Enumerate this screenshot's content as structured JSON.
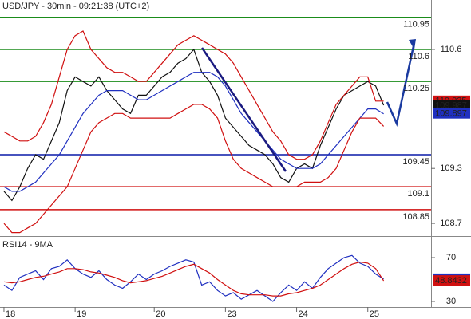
{
  "chart_data": [
    {
      "type": "line",
      "title": "USD/JPY - 30min - 09:21:38 (UTC+2)",
      "ylim": [
        108.57,
        111.14
      ],
      "yticks": [
        108.7,
        109.3,
        110.6
      ],
      "xlim": [
        -0.5,
        54
      ],
      "xticks": [
        {
          "value": 0,
          "label": "18"
        },
        {
          "value": 9,
          "label": "19"
        },
        {
          "value": 19,
          "label": "20"
        },
        {
          "value": 28,
          "label": "23"
        },
        {
          "value": 37,
          "label": "24"
        },
        {
          "value": 46,
          "label": "25"
        }
      ],
      "levels": [
        {
          "value": 110.95,
          "color": "#1a8c1a"
        },
        {
          "value": 110.6,
          "color": "#1a8c1a"
        },
        {
          "value": 110.25,
          "color": "#1a8c1a"
        },
        {
          "value": 109.45,
          "color": "#0a1aa8"
        },
        {
          "value": 109.1,
          "color": "#d01010"
        },
        {
          "value": 108.85,
          "color": "#d01010"
        }
      ],
      "series": [
        {
          "color": "#111111",
          "values": [
            109.05,
            108.95,
            109.1,
            109.3,
            109.45,
            109.4,
            109.6,
            109.8,
            110.15,
            110.3,
            110.25,
            110.2,
            110.3,
            110.15,
            110.05,
            109.95,
            109.9,
            110.1,
            110.1,
            110.2,
            110.3,
            110.35,
            110.45,
            110.5,
            110.6,
            110.35,
            110.25,
            110.1,
            109.85,
            109.75,
            109.65,
            109.55,
            109.5,
            109.45,
            109.35,
            109.2,
            109.15,
            109.3,
            109.35,
            109.3,
            109.55,
            109.75,
            109.95,
            110.1,
            110.15,
            110.2,
            110.25,
            110.2,
            109.99
          ]
        },
        {
          "color": "#2030c0",
          "values": [
            109.1,
            109.05,
            109.05,
            109.1,
            109.15,
            109.25,
            109.35,
            109.45,
            109.6,
            109.75,
            109.9,
            110.0,
            110.1,
            110.15,
            110.15,
            110.15,
            110.1,
            110.05,
            110.05,
            110.1,
            110.15,
            110.2,
            110.25,
            110.3,
            110.35,
            110.35,
            110.35,
            110.3,
            110.2,
            110.05,
            109.9,
            109.8,
            109.7,
            109.6,
            109.5,
            109.4,
            109.35,
            109.3,
            109.3,
            109.3,
            109.35,
            109.45,
            109.55,
            109.65,
            109.75,
            109.85,
            109.95,
            109.95,
            109.897
          ]
        },
        {
          "color": "#d01010",
          "values": [
            109.7,
            109.65,
            109.6,
            109.6,
            109.65,
            109.8,
            110.0,
            110.3,
            110.6,
            110.75,
            110.8,
            110.6,
            110.5,
            110.4,
            110.35,
            110.35,
            110.3,
            110.25,
            110.25,
            110.35,
            110.45,
            110.55,
            110.65,
            110.7,
            110.75,
            110.7,
            110.65,
            110.6,
            110.55,
            110.45,
            110.3,
            110.15,
            110.0,
            109.85,
            109.7,
            109.6,
            109.45,
            109.4,
            109.4,
            109.45,
            109.6,
            109.8,
            110.0,
            110.1,
            110.2,
            110.3,
            110.3,
            110.035,
            110.035
          ]
        },
        {
          "color": "#d01010",
          "values": [
            108.7,
            108.6,
            108.6,
            108.65,
            108.7,
            108.8,
            108.9,
            109.0,
            109.1,
            109.3,
            109.5,
            109.7,
            109.8,
            109.85,
            109.9,
            109.9,
            109.85,
            109.85,
            109.85,
            109.85,
            109.85,
            109.85,
            109.9,
            109.95,
            110.0,
            110.0,
            109.95,
            109.85,
            109.6,
            109.4,
            109.3,
            109.25,
            109.2,
            109.15,
            109.1,
            109.1,
            109.1,
            109.1,
            109.15,
            109.15,
            109.15,
            109.2,
            109.3,
            109.5,
            109.7,
            109.85,
            109.85,
            109.85,
            109.76
          ]
        }
      ],
      "tags": [
        {
          "value": 110.035,
          "color": "#d01010",
          "text_color": "#ffffff"
        },
        {
          "value": 109.987,
          "color": "#111111",
          "text_color": "#ffffff"
        },
        {
          "value": 109.897,
          "color": "#2030c0",
          "text_color": "#ffffff"
        }
      ]
    },
    {
      "type": "line",
      "title": "RSI14 - 9MA",
      "ylim": [
        24.9,
        88.2
      ],
      "yticks": [
        30,
        70
      ],
      "xlim": [
        -0.5,
        54
      ],
      "series": [
        {
          "color": "#2030c0",
          "values": [
            45,
            40,
            52,
            55,
            58,
            50,
            60,
            62,
            68,
            60,
            55,
            52,
            58,
            50,
            45,
            42,
            48,
            55,
            50,
            55,
            58,
            62,
            65,
            68,
            66,
            45,
            48,
            40,
            35,
            38,
            32,
            36,
            40,
            35,
            30,
            38,
            45,
            40,
            48,
            42,
            52,
            60,
            65,
            70,
            72,
            65,
            62,
            55,
            50.4308
          ]
        },
        {
          "color": "#d01010",
          "values": [
            48,
            47,
            48,
            50,
            52,
            53,
            55,
            57,
            60,
            60,
            59,
            57,
            56,
            54,
            52,
            49,
            47,
            48,
            49,
            51,
            53,
            56,
            59,
            62,
            64,
            60,
            56,
            50,
            45,
            40,
            37,
            36,
            36,
            36,
            35,
            35,
            37,
            38,
            40,
            42,
            45,
            50,
            55,
            60,
            64,
            66,
            65,
            60,
            48.8432
          ]
        }
      ],
      "tags": [
        {
          "value": 50.4308,
          "color": "#2030c0",
          "text_color": "#ffffff"
        },
        {
          "value": 48.8432,
          "color": "#d01010",
          "text_color": "#ffffff"
        }
      ]
    }
  ]
}
